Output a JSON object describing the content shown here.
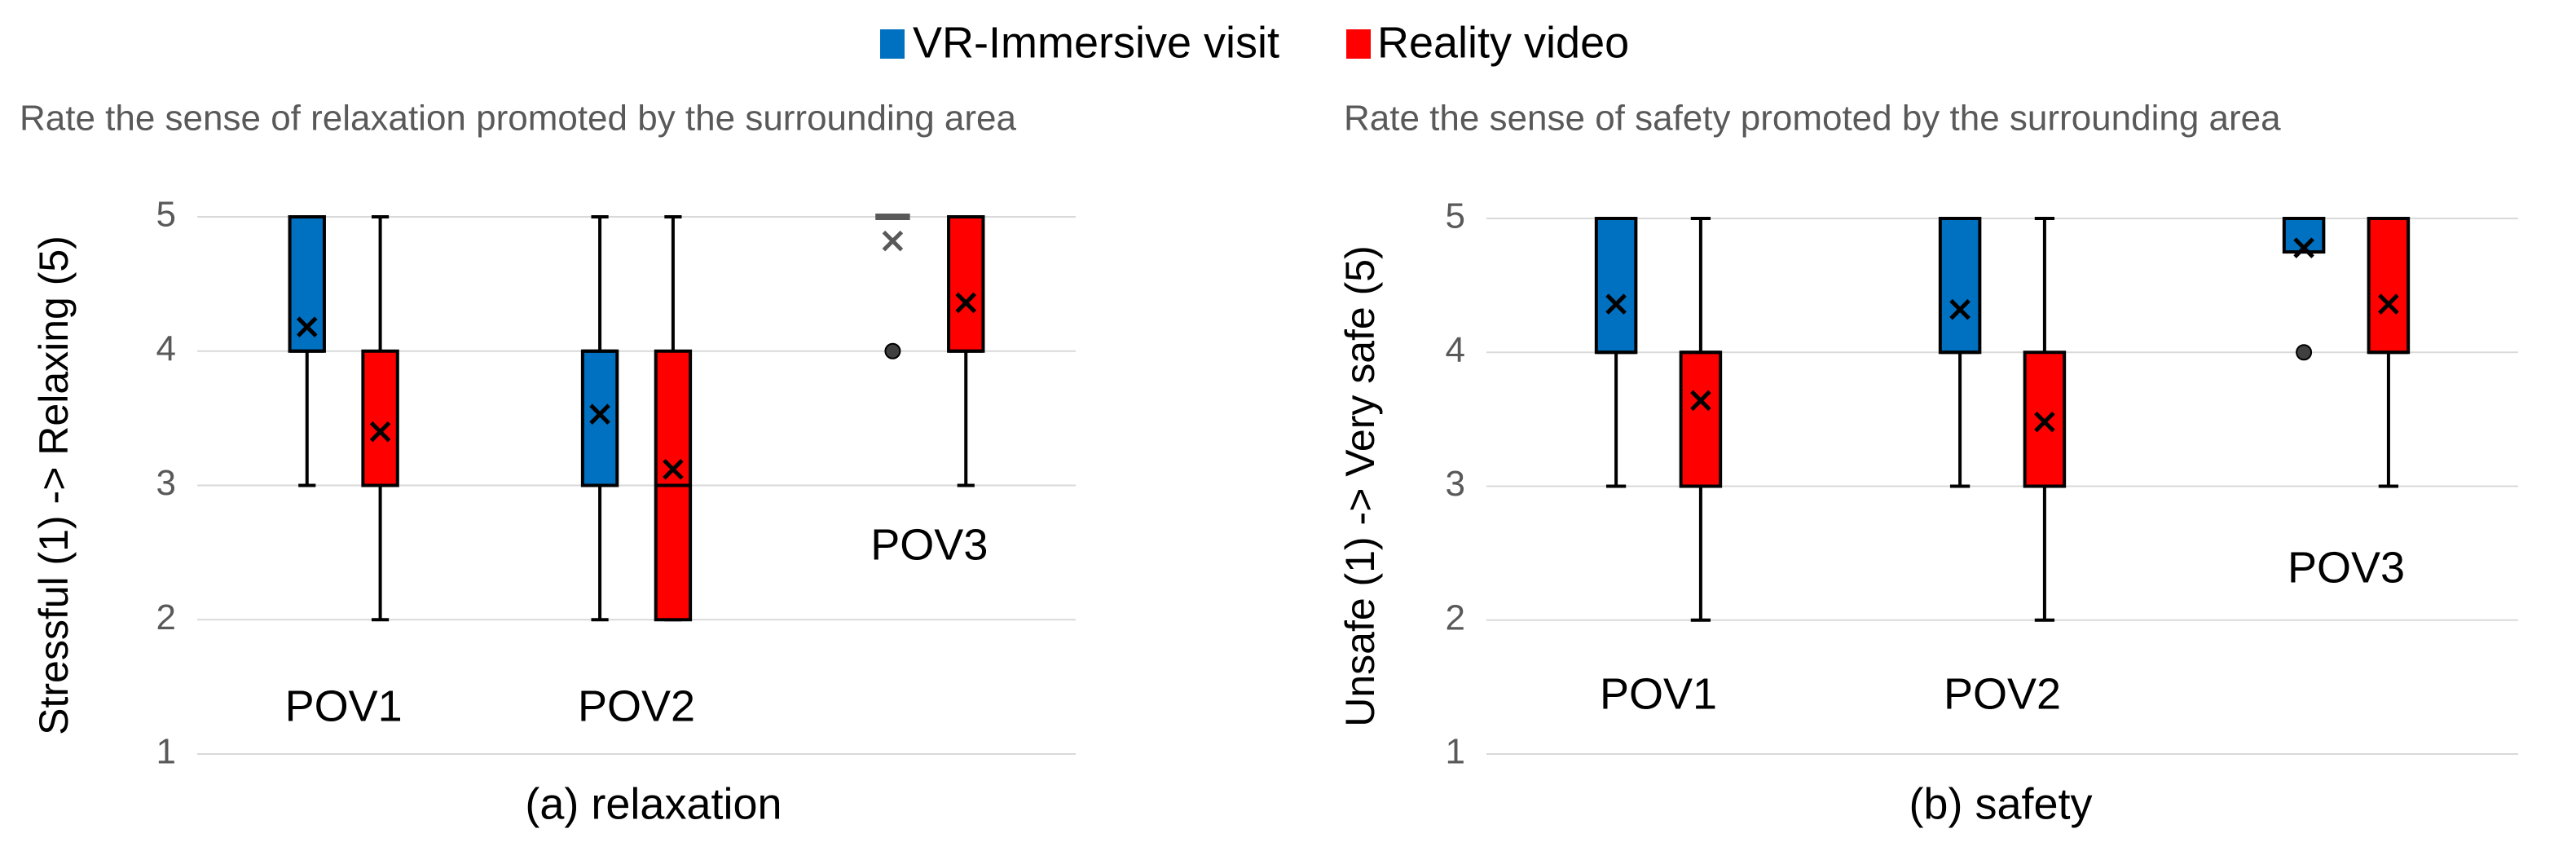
{
  "chart_data": [
    {
      "type": "box",
      "title": "Rate the sense of relaxation promoted by the surrounding area",
      "ylabel": "Stressful (1) -> Relaxing (5)",
      "caption": "(a) relaxation",
      "categories": [
        "POV1",
        "POV2",
        "POV3"
      ],
      "ylim": [
        1,
        5
      ],
      "yticks": [
        1,
        2,
        3,
        4,
        5
      ],
      "grid": true,
      "series": [
        {
          "name": "VR-Immersive visit",
          "color": "#0070c0",
          "min": [
            3,
            2,
            5
          ],
          "q1": [
            4,
            3,
            5
          ],
          "median": [
            4,
            4,
            5
          ],
          "q3": [
            5,
            4,
            5
          ],
          "max": [
            5,
            5,
            5
          ],
          "mean": [
            4.18,
            3.53,
            4.82
          ],
          "outliers": [
            [],
            [],
            [
              4
            ]
          ]
        },
        {
          "name": "Reality video",
          "color": "#ff0000",
          "min": [
            2,
            2,
            3
          ],
          "q1": [
            3,
            2,
            4
          ],
          "median": [
            3,
            3,
            4
          ],
          "q3": [
            4,
            4,
            5
          ],
          "max": [
            5,
            5,
            5
          ],
          "mean": [
            3.4,
            3.12,
            4.36
          ],
          "outliers": [
            [],
            [],
            []
          ]
        }
      ]
    },
    {
      "type": "box",
      "title": "Rate the sense of safety promoted by the surrounding area",
      "ylabel": "Unsafe (1) -> Very safe (5)",
      "caption": "(b) safety",
      "categories": [
        "POV1",
        "POV2",
        "POV3"
      ],
      "ylim": [
        1,
        5
      ],
      "yticks": [
        1,
        2,
        3,
        4,
        5
      ],
      "grid": true,
      "series": [
        {
          "color": "#0070c0",
          "min": [
            3,
            3,
            4.75
          ],
          "q1": [
            4,
            4,
            4.75
          ],
          "median": [
            4,
            4,
            5
          ],
          "q3": [
            5,
            5,
            5
          ],
          "max": [
            5,
            5,
            5
          ],
          "mean": [
            4.36,
            4.32,
            4.78
          ],
          "outliers": [
            [],
            [],
            [
              4
            ]
          ]
        },
        {
          "color": "#ff0000",
          "min": [
            2,
            2,
            3
          ],
          "q1": [
            3,
            3,
            4
          ],
          "median": [
            4,
            3,
            4
          ],
          "q3": [
            4,
            4,
            5
          ],
          "max": [
            5,
            5,
            5
          ],
          "mean": [
            3.64,
            3.48,
            4.36
          ],
          "outliers": [
            [],
            [],
            []
          ]
        }
      ]
    }
  ]
}
